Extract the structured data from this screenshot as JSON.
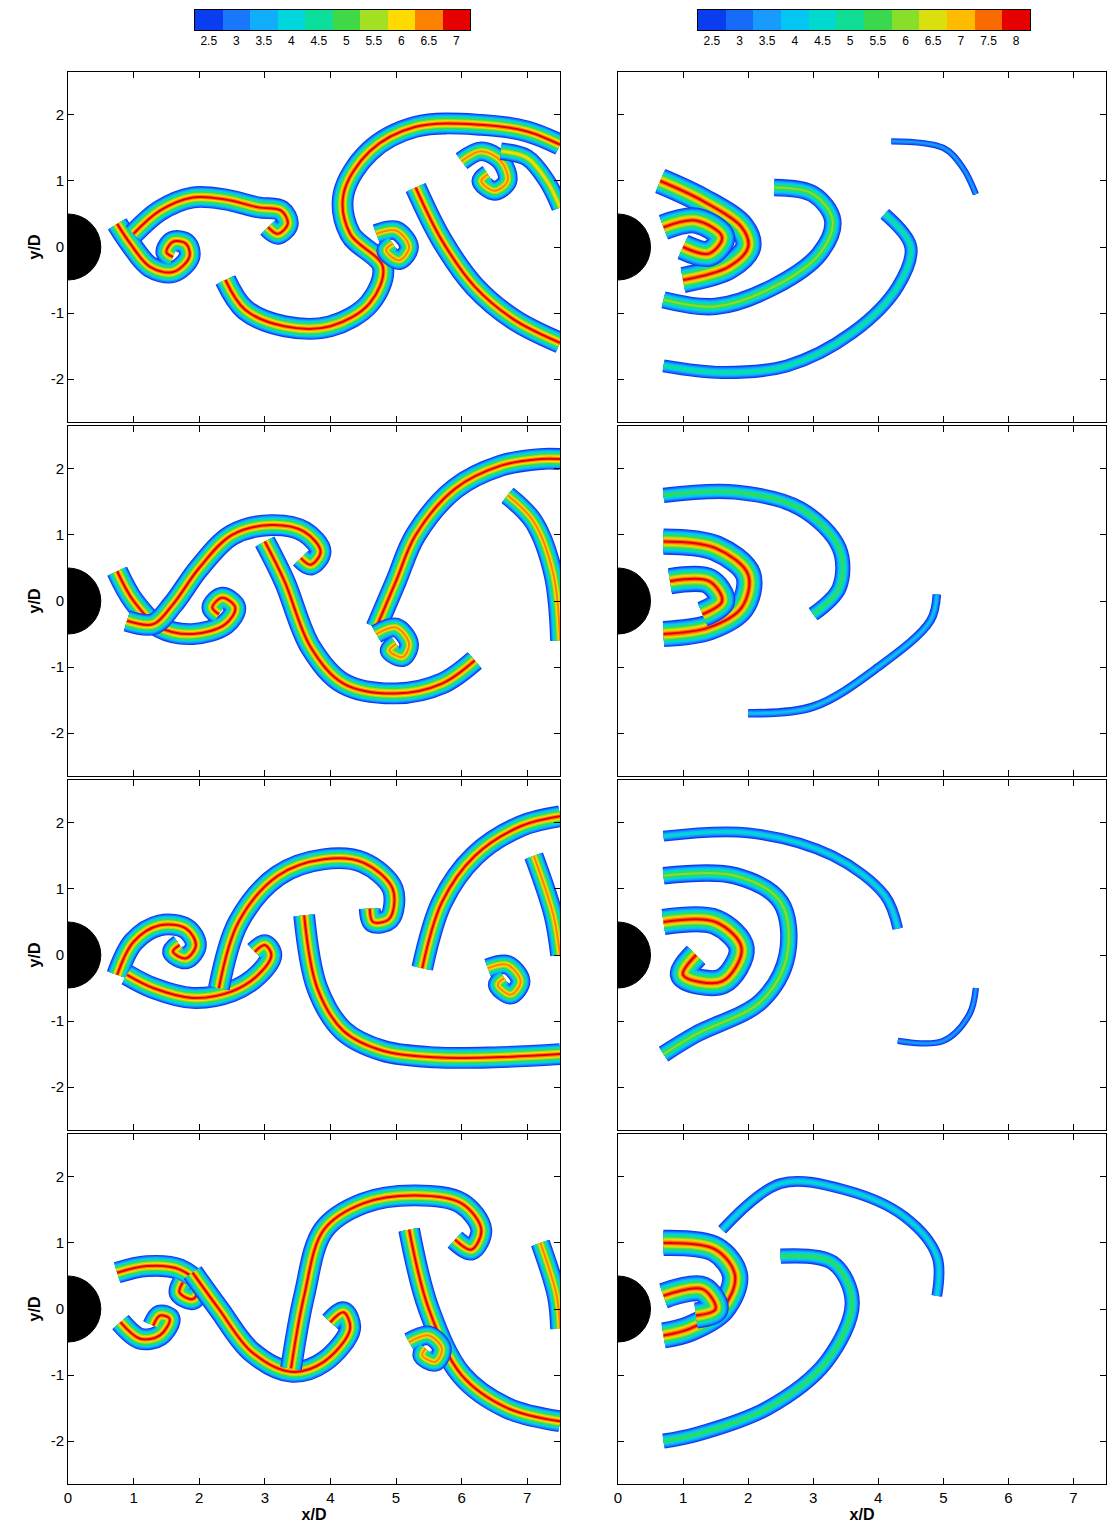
{
  "chart_data": [
    {
      "type": "contour",
      "ylabel": "y/D",
      "xlim": [
        0,
        7.5
      ],
      "ylim": [
        -2.65,
        2.65
      ],
      "xticks": [
        0,
        1,
        2,
        3,
        4,
        5,
        6,
        7
      ],
      "yticks": [
        -2,
        -1,
        0,
        1,
        2
      ],
      "tick_labels": "y",
      "colorbar": {
        "range": [
          2.25,
          7.25
        ],
        "ticks": [
          2.5,
          3,
          3.5,
          4,
          4.5,
          5,
          5.5,
          6,
          6.5,
          7
        ]
      },
      "cylinder": {
        "x": 0,
        "y": 0,
        "radius": 0.5
      },
      "filaments": [
        {
          "x": [
            0.75,
            0.95,
            1.25,
            1.6,
            1.85,
            1.8,
            1.6,
            1.5,
            1.6
          ],
          "y": [
            0.35,
            0.05,
            -0.3,
            -0.38,
            -0.15,
            0.05,
            0.08,
            -0.08,
            -0.15
          ],
          "peak": 7
        },
        {
          "x": [
            1.0,
            1.4,
            1.9,
            2.4,
            2.9,
            3.25,
            3.35,
            3.2,
            3.05
          ],
          "y": [
            0.2,
            0.55,
            0.75,
            0.72,
            0.6,
            0.55,
            0.35,
            0.2,
            0.3
          ],
          "peak": 7
        },
        {
          "x": [
            2.4,
            2.7,
            3.3,
            4.0,
            4.6,
            4.8,
            4.3,
            4.2,
            4.6,
            5.3,
            6.3,
            7.0,
            7.5
          ],
          "y": [
            -0.5,
            -0.95,
            -1.2,
            -1.2,
            -0.85,
            -0.3,
            0.2,
            0.8,
            1.45,
            1.82,
            1.85,
            1.75,
            1.55
          ],
          "peak": 7
        },
        {
          "x": [
            4.7,
            5.0,
            5.2,
            5.05,
            4.85,
            4.95
          ],
          "y": [
            0.2,
            0.25,
            0.0,
            -0.2,
            -0.05,
            0.05
          ],
          "peak": 6.5
        },
        {
          "x": [
            5.3,
            5.7,
            6.2,
            6.8,
            7.5
          ],
          "y": [
            0.9,
            0.1,
            -0.6,
            -1.1,
            -1.45
          ],
          "peak": 7
        },
        {
          "x": [
            6.0,
            6.3,
            6.6,
            6.7,
            6.5,
            6.3,
            6.4
          ],
          "y": [
            1.3,
            1.45,
            1.3,
            1.0,
            0.85,
            1.0,
            1.1
          ],
          "peak": 6.5
        },
        {
          "x": [
            6.6,
            7.0,
            7.3,
            7.5
          ],
          "y": [
            1.45,
            1.35,
            1.0,
            0.6
          ],
          "peak": 6
        }
      ]
    },
    {
      "type": "contour",
      "xlim": [
        0,
        7.5
      ],
      "ylim": [
        -2.65,
        2.65
      ],
      "xticks": [
        0,
        1,
        2,
        3,
        4,
        5,
        6,
        7
      ],
      "yticks": [
        -2,
        -1,
        0,
        1,
        2
      ],
      "tick_labels": false,
      "colorbar": {
        "range": [
          2.25,
          8.25
        ],
        "ticks": [
          2.5,
          3,
          3.5,
          4,
          4.5,
          5,
          5.5,
          6,
          6.5,
          7,
          7.5,
          8
        ]
      },
      "cylinder": {
        "x": 0,
        "y": 0,
        "radius": 0.5
      },
      "filaments": [
        {
          "x": [
            0.65,
            1.3,
            1.9,
            2.0,
            1.7,
            1.0
          ],
          "y": [
            1.0,
            0.7,
            0.3,
            0.0,
            -0.3,
            -0.5
          ],
          "peak": 8
        },
        {
          "x": [
            0.7,
            1.2,
            1.6,
            1.4,
            1.0
          ],
          "y": [
            0.3,
            0.4,
            0.15,
            -0.1,
            0.0
          ],
          "peak": 8
        },
        {
          "x": [
            0.7,
            1.5,
            2.4,
            3.1,
            3.3,
            3.0,
            2.4
          ],
          "y": [
            -0.8,
            -0.9,
            -0.6,
            -0.1,
            0.4,
            0.8,
            0.9
          ],
          "peak": 6
        },
        {
          "x": [
            0.7,
            1.6,
            2.6,
            3.6,
            4.3,
            4.5,
            4.1
          ],
          "y": [
            -1.8,
            -1.9,
            -1.8,
            -1.3,
            -0.6,
            0.0,
            0.5
          ],
          "peak": 5
        },
        {
          "x": [
            4.2,
            5.0,
            5.3,
            5.5
          ],
          "y": [
            1.6,
            1.5,
            1.2,
            0.8
          ],
          "peak": 3.5
        }
      ]
    },
    {
      "type": "contour",
      "ylabel": "y/D",
      "xlim": [
        0,
        7.5
      ],
      "ylim": [
        -2.65,
        2.65
      ],
      "xticks": [
        0,
        1,
        2,
        3,
        4,
        5,
        6,
        7
      ],
      "yticks": [
        -2,
        -1,
        0,
        1,
        2
      ],
      "tick_labels": "y",
      "cylinder": {
        "x": 0,
        "y": 0,
        "radius": 0.5
      },
      "filaments": [
        {
          "x": [
            0.75,
            1.0,
            1.4,
            1.9,
            2.4,
            2.55,
            2.35,
            2.2,
            2.3
          ],
          "y": [
            0.45,
            0.0,
            -0.4,
            -0.5,
            -0.35,
            -0.1,
            0.05,
            -0.1,
            -0.2
          ],
          "peak": 7
        },
        {
          "x": [
            0.9,
            1.3,
            1.6,
            2.0,
            2.5,
            3.1,
            3.6,
            3.85,
            3.7,
            3.55
          ],
          "y": [
            -0.3,
            -0.35,
            -0.05,
            0.5,
            1.0,
            1.15,
            1.05,
            0.75,
            0.55,
            0.65
          ],
          "peak": 7
        },
        {
          "x": [
            3.0,
            3.3,
            3.7,
            4.2,
            5.0,
            5.7,
            6.2
          ],
          "y": [
            0.9,
            0.3,
            -0.7,
            -1.25,
            -1.4,
            -1.25,
            -0.9
          ],
          "peak": 7
        },
        {
          "x": [
            4.7,
            5.0,
            5.3,
            5.9,
            6.6,
            7.2,
            7.5
          ],
          "y": [
            -0.4,
            0.3,
            1.0,
            1.7,
            2.05,
            2.15,
            2.15
          ],
          "peak": 7
        },
        {
          "x": [
            4.7,
            5.0,
            5.2,
            5.1,
            4.9,
            5.0
          ],
          "y": [
            -0.5,
            -0.4,
            -0.65,
            -0.85,
            -0.75,
            -0.65
          ],
          "peak": 6.5
        },
        {
          "x": [
            6.7,
            7.1,
            7.4,
            7.5
          ],
          "y": [
            1.6,
            1.2,
            0.4,
            -0.6
          ],
          "peak": 6.5
        }
      ]
    },
    {
      "type": "contour",
      "xlim": [
        0,
        7.5
      ],
      "ylim": [
        -2.65,
        2.65
      ],
      "xticks": [
        0,
        1,
        2,
        3,
        4,
        5,
        6,
        7
      ],
      "yticks": [
        -2,
        -1,
        0,
        1,
        2
      ],
      "tick_labels": false,
      "cylinder": {
        "x": 0,
        "y": 0,
        "radius": 0.5
      },
      "filaments": [
        {
          "x": [
            0.7,
            1.8,
            2.8,
            3.4,
            3.4,
            3.0
          ],
          "y": [
            1.6,
            1.65,
            1.4,
            0.8,
            0.2,
            -0.2
          ],
          "peak": 5.5
        },
        {
          "x": [
            0.7,
            1.5,
            2.0,
            1.9,
            1.4,
            0.7
          ],
          "y": [
            0.9,
            0.8,
            0.4,
            -0.1,
            -0.4,
            -0.5
          ],
          "peak": 8
        },
        {
          "x": [
            0.8,
            1.4,
            1.6,
            1.3
          ],
          "y": [
            0.3,
            0.3,
            0.0,
            -0.2
          ],
          "peak": 8
        },
        {
          "x": [
            2.0,
            3.0,
            4.0,
            4.8,
            4.9
          ],
          "y": [
            -1.7,
            -1.6,
            -1.0,
            -0.3,
            0.1
          ],
          "peak": 4
        }
      ]
    },
    {
      "type": "contour",
      "ylabel": "y/D",
      "xlim": [
        0,
        7.5
      ],
      "ylim": [
        -2.65,
        2.65
      ],
      "xticks": [
        0,
        1,
        2,
        3,
        4,
        5,
        6,
        7
      ],
      "yticks": [
        -2,
        -1,
        0,
        1,
        2
      ],
      "tick_labels": "y",
      "cylinder": {
        "x": 0,
        "y": 0,
        "radius": 0.5
      },
      "filaments": [
        {
          "x": [
            0.75,
            1.0,
            1.4,
            1.8,
            1.95,
            1.8,
            1.6,
            1.7
          ],
          "y": [
            -0.3,
            0.2,
            0.45,
            0.4,
            0.15,
            -0.05,
            0.05,
            0.15
          ],
          "peak": 7
        },
        {
          "x": [
            0.9,
            1.3,
            1.9,
            2.5,
            2.9,
            3.1,
            3.0,
            2.85
          ],
          "y": [
            -0.3,
            -0.5,
            -0.65,
            -0.55,
            -0.3,
            0.0,
            0.15,
            0.05
          ],
          "peak": 7
        },
        {
          "x": [
            2.3,
            2.6,
            3.2,
            3.9,
            4.5,
            4.95,
            4.9,
            4.65,
            4.6
          ],
          "y": [
            -0.5,
            0.5,
            1.2,
            1.45,
            1.4,
            1.0,
            0.55,
            0.5,
            0.7
          ],
          "peak": 7
        },
        {
          "x": [
            3.6,
            3.8,
            4.2,
            4.8,
            5.6,
            6.5,
            7.5
          ],
          "y": [
            0.6,
            -0.5,
            -1.15,
            -1.45,
            -1.55,
            -1.55,
            -1.5
          ],
          "peak": 7
        },
        {
          "x": [
            5.4,
            5.7,
            6.2,
            6.9,
            7.5
          ],
          "y": [
            -0.2,
            0.8,
            1.5,
            1.95,
            2.1
          ],
          "peak": 7
        },
        {
          "x": [
            6.4,
            6.7,
            6.9,
            6.75,
            6.55,
            6.65
          ],
          "y": [
            -0.2,
            -0.15,
            -0.4,
            -0.6,
            -0.45,
            -0.35
          ],
          "peak": 6.5
        },
        {
          "x": [
            7.1,
            7.4,
            7.5
          ],
          "y": [
            1.5,
            0.6,
            0.0
          ],
          "peak": 6.5
        }
      ]
    },
    {
      "type": "contour",
      "xlim": [
        0,
        7.5
      ],
      "ylim": [
        -2.65,
        2.65
      ],
      "xticks": [
        0,
        1,
        2,
        3,
        4,
        5,
        6,
        7
      ],
      "yticks": [
        -2,
        -1,
        0,
        1,
        2
      ],
      "tick_labels": false,
      "cylinder": {
        "x": 0,
        "y": 0,
        "radius": 0.5
      },
      "filaments": [
        {
          "x": [
            0.7,
            2.0,
            3.3,
            4.1,
            4.3
          ],
          "y": [
            1.8,
            1.85,
            1.5,
            0.9,
            0.4
          ],
          "peak": 4.5
        },
        {
          "x": [
            0.7,
            1.8,
            2.5,
            2.6,
            2.2,
            1.2,
            0.7
          ],
          "y": [
            1.2,
            1.2,
            0.8,
            0.0,
            -0.7,
            -1.2,
            -1.5
          ],
          "peak": 6
        },
        {
          "x": [
            0.7,
            1.5,
            1.9,
            1.6,
            1.0,
            1.2
          ],
          "y": [
            0.5,
            0.5,
            0.1,
            -0.4,
            -0.3,
            0.0
          ],
          "peak": 8
        },
        {
          "x": [
            4.3,
            5.0,
            5.4,
            5.5
          ],
          "y": [
            -1.3,
            -1.3,
            -0.9,
            -0.5
          ],
          "peak": 3.5
        }
      ]
    },
    {
      "type": "contour",
      "xlabel": "x/D",
      "ylabel": "y/D",
      "xlim": [
        0,
        7.5
      ],
      "ylim": [
        -2.65,
        2.65
      ],
      "xticks": [
        0,
        1,
        2,
        3,
        4,
        5,
        6,
        7
      ],
      "yticks": [
        -2,
        -1,
        0,
        1,
        2
      ],
      "tick_labels": true,
      "cylinder": {
        "x": 0,
        "y": 0,
        "radius": 0.5
      },
      "filaments": [
        {
          "x": [
            0.75,
            1.2,
            1.7,
            2.0,
            1.9,
            1.7,
            1.75
          ],
          "y": [
            0.55,
            0.65,
            0.6,
            0.35,
            0.15,
            0.25,
            0.4
          ],
          "peak": 7
        },
        {
          "x": [
            0.8,
            1.1,
            1.4,
            1.55,
            1.4,
            1.3
          ],
          "y": [
            -0.2,
            -0.45,
            -0.4,
            -0.15,
            -0.1,
            -0.25
          ],
          "peak": 7
        },
        {
          "x": [
            1.9,
            2.3,
            2.8,
            3.4,
            3.9,
            4.3,
            4.2,
            4.0
          ],
          "y": [
            0.55,
            0.0,
            -0.65,
            -0.95,
            -0.8,
            -0.3,
            -0.05,
            -0.2
          ],
          "peak": 7
        },
        {
          "x": [
            3.4,
            3.6,
            3.9,
            4.5,
            5.3,
            6.0,
            6.3,
            6.15,
            5.9
          ],
          "y": [
            -0.9,
            0.2,
            1.2,
            1.6,
            1.72,
            1.6,
            1.2,
            0.9,
            1.05
          ],
          "peak": 7
        },
        {
          "x": [
            5.2,
            5.5,
            6.0,
            6.7,
            7.5
          ],
          "y": [
            1.2,
            0.0,
            -1.0,
            -1.5,
            -1.7
          ],
          "peak": 7
        },
        {
          "x": [
            7.2,
            7.45,
            7.5
          ],
          "y": [
            1.0,
            0.2,
            -0.3
          ],
          "peak": 6.5
        },
        {
          "x": [
            5.2,
            5.5,
            5.7,
            5.6,
            5.4,
            5.45
          ],
          "y": [
            -0.5,
            -0.4,
            -0.6,
            -0.8,
            -0.7,
            -0.6
          ],
          "peak": 6.5
        }
      ]
    },
    {
      "type": "contour",
      "xlabel": "x/D",
      "xlim": [
        0,
        7.5
      ],
      "ylim": [
        -2.65,
        2.65
      ],
      "xticks": [
        0,
        1,
        2,
        3,
        4,
        5,
        6,
        7
      ],
      "yticks": [
        -2,
        -1,
        0,
        1,
        2
      ],
      "tick_labels": "x",
      "cylinder": {
        "x": 0,
        "y": 0,
        "radius": 0.5
      },
      "filaments": [
        {
          "x": [
            1.6,
            2.5,
            3.5,
            4.4,
            4.9,
            4.9
          ],
          "y": [
            1.2,
            1.9,
            1.8,
            1.4,
            0.8,
            0.2
          ],
          "peak": 4.5
        },
        {
          "x": [
            2.5,
            3.3,
            3.6,
            3.2,
            2.3,
            1.2,
            0.7
          ],
          "y": [
            0.8,
            0.7,
            0.1,
            -0.8,
            -1.5,
            -1.9,
            -2.0
          ],
          "peak": 5.5
        },
        {
          "x": [
            0.7,
            1.5,
            1.8,
            1.6,
            1.1,
            0.7
          ],
          "y": [
            1.0,
            0.9,
            0.5,
            0.0,
            -0.3,
            -0.4
          ],
          "peak": 8
        },
        {
          "x": [
            0.7,
            1.3,
            1.5,
            1.2
          ],
          "y": [
            0.2,
            0.3,
            0.0,
            -0.1
          ],
          "peak": 8
        }
      ]
    }
  ]
}
